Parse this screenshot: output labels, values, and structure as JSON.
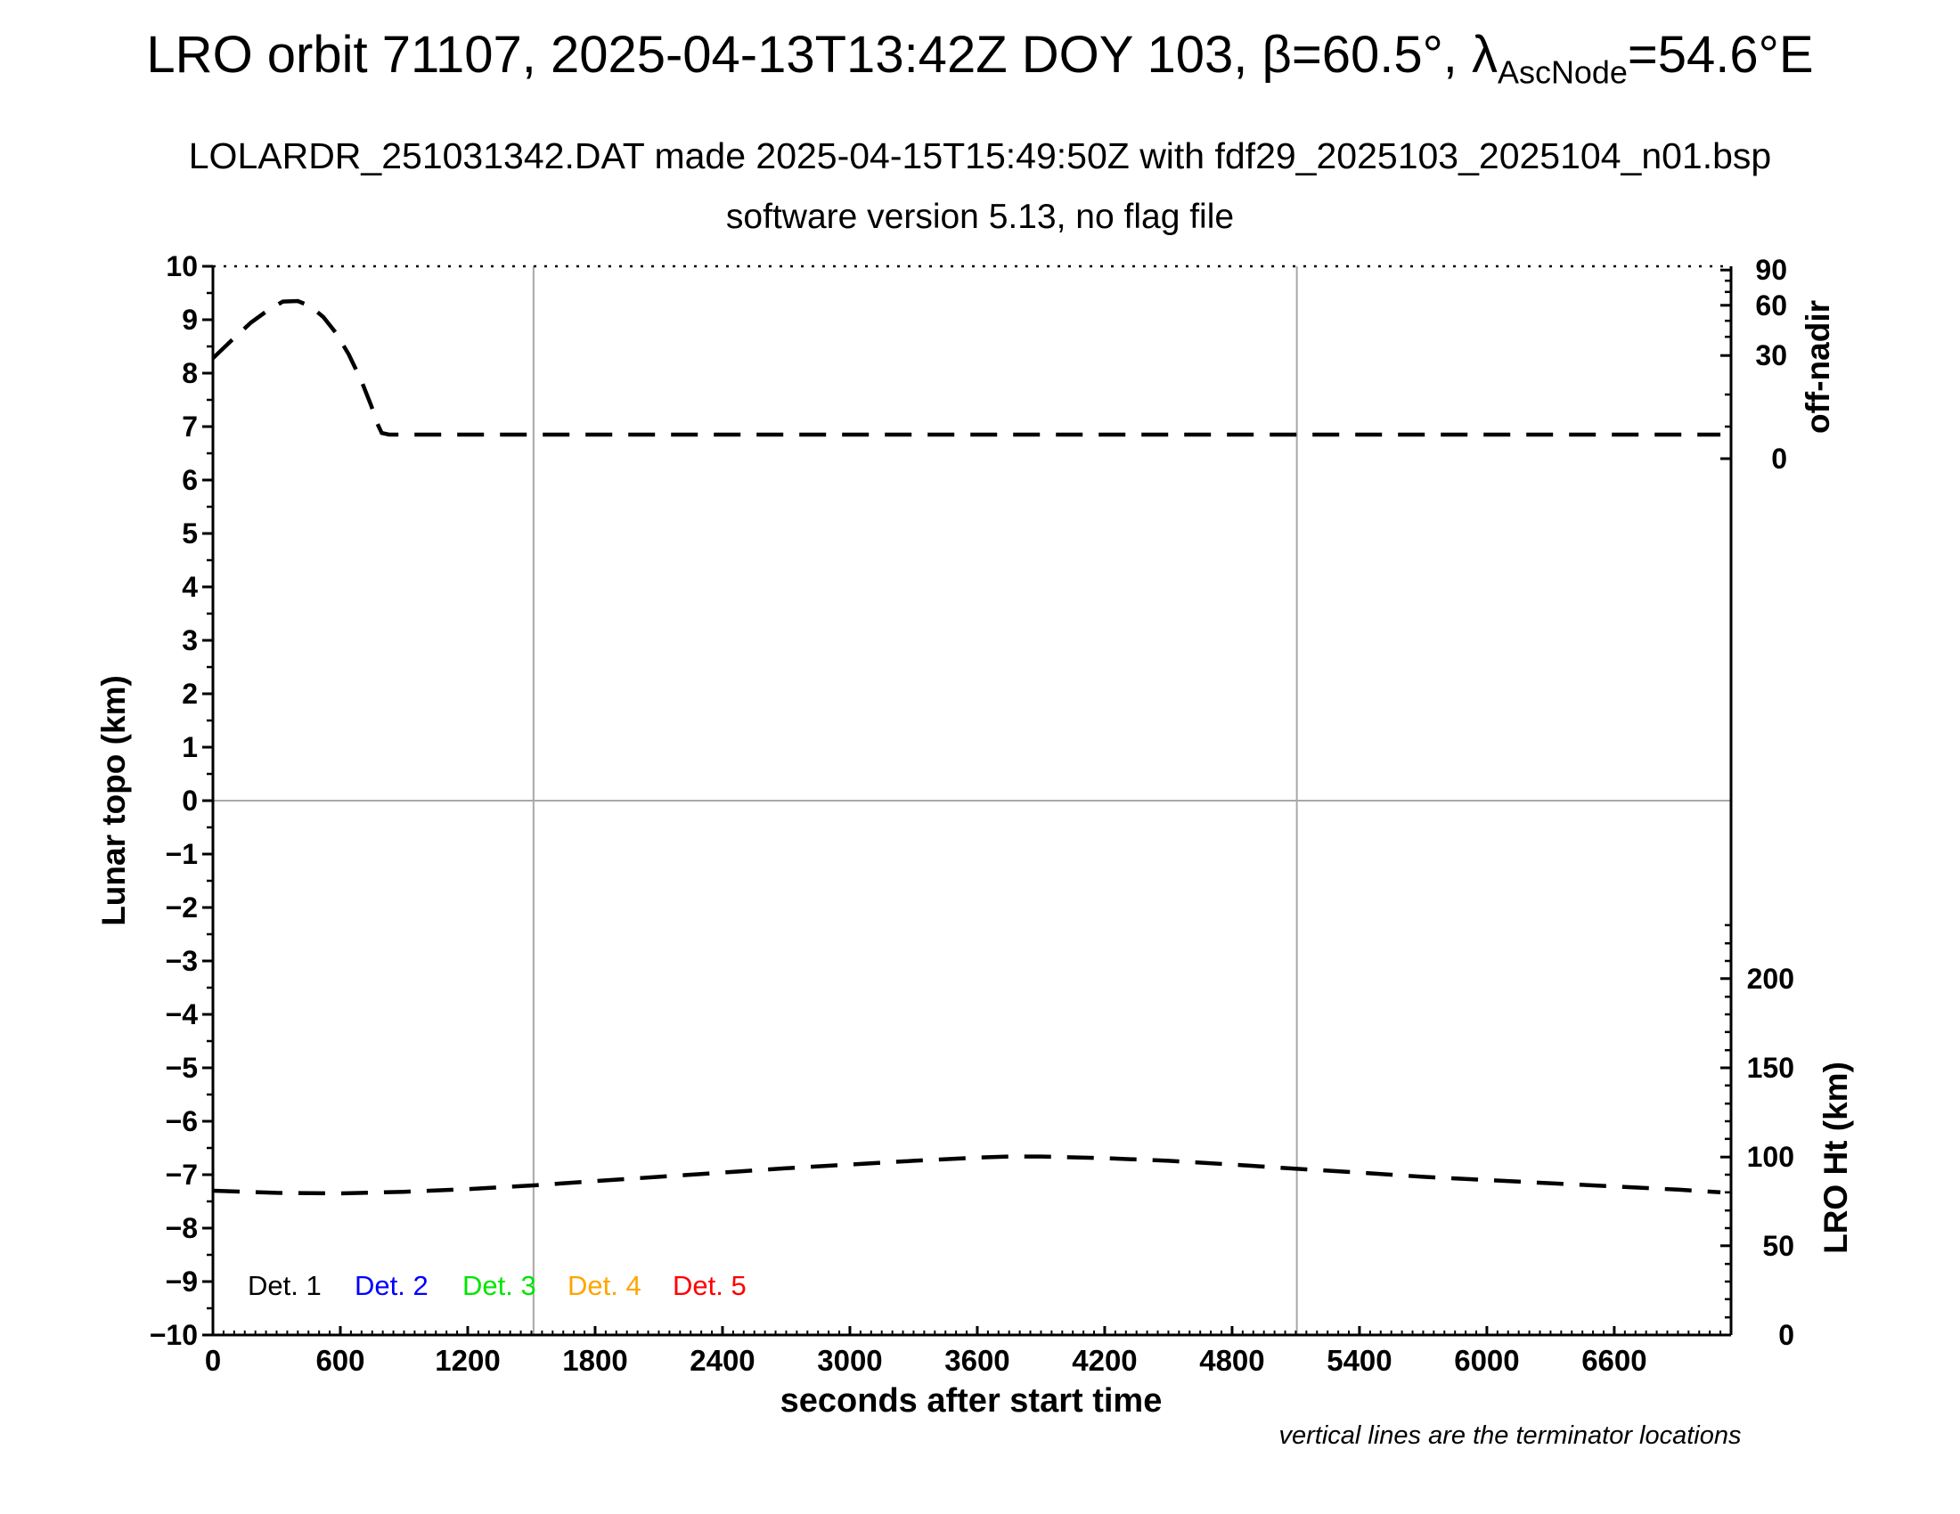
{
  "header": {
    "title_prefix": "LRO orbit 71107, 2025-04-13T13:42Z DOY 103, β=60.5°, λ",
    "title_subscript": "AscNode",
    "title_suffix": "=54.6°E",
    "subtitle_line1": "LOLARDR_251031342.DAT made 2025-04-15T15:49:50Z with fdf29_2025103_2025104_n01.bsp",
    "subtitle_line2": "software version 5.13, no flag file"
  },
  "chart_data": {
    "type": "line",
    "title": "LRO orbit 71107, 2025-04-13T13:42Z DOY 103, β=60.5°, λ_AscNode=54.6°E",
    "xlabel": "seconds after start time",
    "ylabel_left": "Lunar topo (km)",
    "ylabel_right_upper": "off-nadir",
    "ylabel_right_lower": "LRO Ht (km)",
    "footnote": "vertical lines are the terminator locations",
    "xlim": [
      0,
      7150
    ],
    "ylim_left": [
      -10,
      10
    ],
    "x_major_ticks": [
      0,
      600,
      1200,
      1800,
      2400,
      3000,
      3600,
      4200,
      4800,
      5400,
      6000,
      6600
    ],
    "x_minor_step": 50,
    "y_major_step": 1,
    "y_minor_step": 0.5,
    "grid": "none",
    "zero_line_y": 0,
    "terminator_lines_x": [
      1510,
      5105
    ],
    "off_nadir_axis": {
      "labels": [
        90,
        60,
        30,
        0
      ],
      "positions_topo": [
        9.93,
        9.27,
        8.33,
        6.4
      ],
      "minor_positions_topo": [
        9.73,
        9.52,
        8.98,
        8.68,
        7.6,
        7.0
      ]
    },
    "lro_ht_axis": {
      "labels": [
        200,
        150,
        100,
        50,
        0
      ],
      "positions_topo": [
        -3.33,
        -5.0,
        -6.67,
        -8.33,
        -10.0
      ],
      "minor_positions_topo": [
        -9.67,
        -9.33,
        -9.0,
        -8.67,
        -8.0,
        -7.67,
        -7.33,
        -7.0,
        -6.33,
        -6.0,
        -5.67,
        -5.33,
        -4.67,
        -4.33,
        -4.0,
        -3.67,
        -3.0,
        -2.67,
        -2.33
      ]
    },
    "series": [
      {
        "name": "off-nadir angle",
        "color": "#000000",
        "style": "dashed",
        "points": [
          [
            0,
            8.28
          ],
          [
            90,
            8.62
          ],
          [
            180,
            8.95
          ],
          [
            260,
            9.18
          ],
          [
            330,
            9.34
          ],
          [
            400,
            9.35
          ],
          [
            460,
            9.25
          ],
          [
            520,
            9.05
          ],
          [
            580,
            8.75
          ],
          [
            640,
            8.35
          ],
          [
            700,
            7.85
          ],
          [
            745,
            7.4
          ],
          [
            775,
            7.05
          ],
          [
            795,
            6.88
          ],
          [
            830,
            6.85
          ],
          [
            7100,
            6.85
          ]
        ]
      },
      {
        "name": "LRO height",
        "color": "#000000",
        "style": "dashed",
        "points": [
          [
            0,
            -7.3
          ],
          [
            300,
            -7.34
          ],
          [
            600,
            -7.35
          ],
          [
            900,
            -7.32
          ],
          [
            1200,
            -7.27
          ],
          [
            1510,
            -7.2
          ],
          [
            1800,
            -7.12
          ],
          [
            2100,
            -7.04
          ],
          [
            2400,
            -6.96
          ],
          [
            2700,
            -6.88
          ],
          [
            3000,
            -6.81
          ],
          [
            3300,
            -6.74
          ],
          [
            3600,
            -6.68
          ],
          [
            3750,
            -6.66
          ],
          [
            3900,
            -6.66
          ],
          [
            4200,
            -6.69
          ],
          [
            4500,
            -6.74
          ],
          [
            4800,
            -6.81
          ],
          [
            5105,
            -6.89
          ],
          [
            5400,
            -6.96
          ],
          [
            5700,
            -7.04
          ],
          [
            6000,
            -7.1
          ],
          [
            6300,
            -7.16
          ],
          [
            6600,
            -7.22
          ],
          [
            6900,
            -7.28
          ],
          [
            7100,
            -7.33
          ]
        ]
      }
    ],
    "legend": [
      {
        "label": "Det. 1",
        "color": "#000000"
      },
      {
        "label": "Det. 2",
        "color": "#0000ff"
      },
      {
        "label": "Det. 3",
        "color": "#00e500"
      },
      {
        "label": "Det. 4",
        "color": "#ffa500"
      },
      {
        "label": "Det. 5",
        "color": "#ff0000"
      }
    ],
    "colors": {
      "axis": "#000000",
      "guide_lines": "#a8a8a8"
    }
  }
}
